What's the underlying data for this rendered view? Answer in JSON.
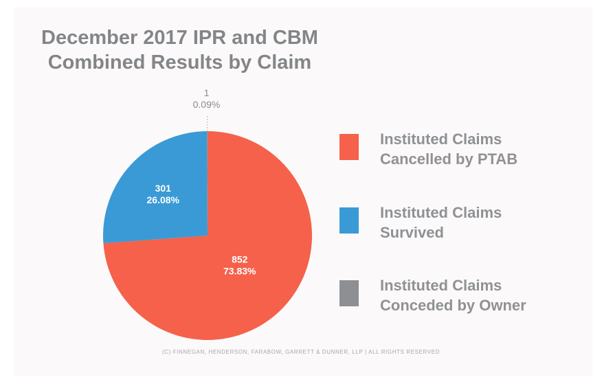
{
  "chart_data": {
    "type": "pie",
    "title_lines": [
      "December 2017 IPR and CBM",
      "Combined Results by Claim"
    ],
    "slices": [
      {
        "label_lines": [
          "Instituted Claims",
          "Cancelled by PTAB"
        ],
        "value": 852,
        "percent": "73.83%",
        "color": "#f5614a"
      },
      {
        "label_lines": [
          "Instituted Claims",
          "Survived"
        ],
        "value": 301,
        "percent": "26.08%",
        "color": "#3a9ad6"
      },
      {
        "label_lines": [
          "Instituted Claims",
          "Conceded by Owner"
        ],
        "value": 1,
        "percent": "0.09%",
        "color": "#8d8f93"
      }
    ]
  },
  "footer": "(C) FINNEGAN, HENDERSON, FARABOW, GARRETT & DUNNER, LLP | ALL RIGHTS RESERVED"
}
